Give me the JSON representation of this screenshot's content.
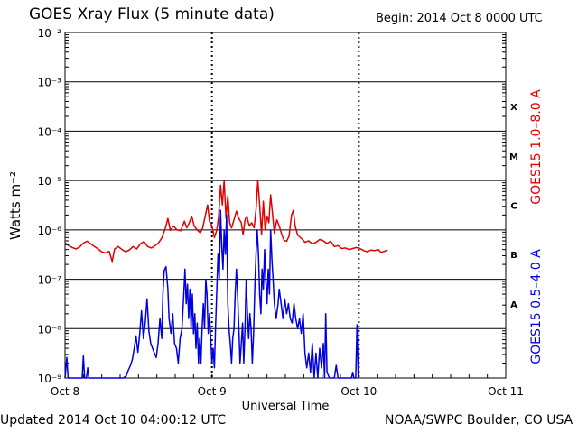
{
  "header": {
    "title": "GOES Xray Flux (5 minute data)",
    "begin": "Begin:  2014 Oct 8 0000 UTC"
  },
  "footer": {
    "updated": "Updated 2014 Oct 10 04:00:12 UTC",
    "credit": "NOAA/SWPC Boulder, CO USA"
  },
  "colors": {
    "long": "#e00000",
    "short": "#0000e0",
    "grid": "#000000"
  },
  "chart_data": {
    "type": "line",
    "title": "GOES Xray Flux (5 minute data)",
    "xlabel": "Universal Time",
    "ylabel": "Watts m⁻²",
    "yscale": "log",
    "ylim": [
      1e-09,
      0.01
    ],
    "xlim": [
      0,
      72
    ],
    "x_unit": "hours since 2014 Oct 8 0000 UTC",
    "x_ticks": [
      {
        "x": 0,
        "label": "Oct 8"
      },
      {
        "x": 24,
        "label": "Oct 9"
      },
      {
        "x": 48,
        "label": "Oct 10"
      },
      {
        "x": 72,
        "label": "Oct 11"
      }
    ],
    "y_ticks": [
      {
        "exp": -9,
        "label": "10⁻⁹"
      },
      {
        "exp": -8,
        "label": "10⁻⁸"
      },
      {
        "exp": -7,
        "label": "10⁻⁷"
      },
      {
        "exp": -6,
        "label": "10⁻⁶"
      },
      {
        "exp": -5,
        "label": "10⁻⁵"
      },
      {
        "exp": -4,
        "label": "10⁻⁴"
      },
      {
        "exp": -3,
        "label": "10⁻³"
      },
      {
        "exp": -2,
        "label": "10⁻²"
      }
    ],
    "flare_classes": [
      {
        "label": "A",
        "exp": -7.5
      },
      {
        "label": "B",
        "exp": -6.5
      },
      {
        "label": "C",
        "exp": -5.5
      },
      {
        "label": "M",
        "exp": -4.5
      },
      {
        "label": "X",
        "exp": -3.5
      }
    ],
    "series": [
      {
        "name": "GOES15 1.0–8.0 A",
        "color": "#e00000",
        "points": [
          [
            0,
            5.5e-07
          ],
          [
            0.6,
            4.8e-07
          ],
          [
            1.2,
            4.4e-07
          ],
          [
            1.8,
            4.1e-07
          ],
          [
            2.4,
            4.5e-07
          ],
          [
            3.0,
            5.4e-07
          ],
          [
            3.6,
            5.9e-07
          ],
          [
            4.2,
            5.2e-07
          ],
          [
            4.8,
            4.6e-07
          ],
          [
            5.4,
            4.1e-07
          ],
          [
            6.0,
            3.6e-07
          ],
          [
            6.6,
            3.4e-07
          ],
          [
            7.2,
            3.7e-07
          ],
          [
            7.7,
            2.3e-07
          ],
          [
            8.1,
            4.1e-07
          ],
          [
            8.7,
            4.6e-07
          ],
          [
            9.3,
            4e-07
          ],
          [
            9.9,
            3.6e-07
          ],
          [
            10.5,
            3.9e-07
          ],
          [
            11.1,
            4.6e-07
          ],
          [
            11.7,
            4.1e-07
          ],
          [
            12.3,
            5.2e-07
          ],
          [
            12.9,
            5.8e-07
          ],
          [
            13.5,
            4.6e-07
          ],
          [
            14.1,
            4.3e-07
          ],
          [
            14.6,
            4.7e-07
          ],
          [
            15.2,
            5.3e-07
          ],
          [
            15.8,
            6.8e-07
          ],
          [
            16.4,
            1.1e-06
          ],
          [
            16.8,
            1.7e-06
          ],
          [
            17.2,
            9.8e-07
          ],
          [
            17.7,
            1.2e-06
          ],
          [
            18.3,
            1e-06
          ],
          [
            18.9,
            9.6e-07
          ],
          [
            19.5,
            1.5e-06
          ],
          [
            19.9,
            1.1e-06
          ],
          [
            20.3,
            1.4e-06
          ],
          [
            20.7,
            1.9e-06
          ],
          [
            21.1,
            1.2e-06
          ],
          [
            21.6,
            1e-06
          ],
          [
            22.1,
            8.7e-07
          ],
          [
            22.5,
            1.1e-06
          ],
          [
            22.9,
            1.9e-06
          ],
          [
            23.3,
            3.2e-06
          ],
          [
            23.6,
            1.5e-06
          ],
          [
            24.0,
            1.2e-06
          ],
          [
            24.4,
            7e-07
          ],
          [
            24.8,
            1e-06
          ],
          [
            25.1,
            1.9e-06
          ],
          [
            25.4,
            8e-06
          ],
          [
            25.7,
            3.2e-06
          ],
          [
            26.0,
            1e-05
          ],
          [
            26.3,
            1.7e-06
          ],
          [
            26.6,
            4.9e-06
          ],
          [
            26.9,
            1.4e-06
          ],
          [
            27.2,
            1.1e-06
          ],
          [
            27.6,
            1.6e-06
          ],
          [
            28.0,
            2.4e-06
          ],
          [
            28.4,
            1.7e-06
          ],
          [
            28.8,
            1.4e-06
          ],
          [
            29.1,
            8e-07
          ],
          [
            29.4,
            1.6e-06
          ],
          [
            29.7,
            1.9e-06
          ],
          [
            30.1,
            1.2e-06
          ],
          [
            30.5,
            1.4e-06
          ],
          [
            30.9,
            1.1e-06
          ],
          [
            31.2,
            2.6e-06
          ],
          [
            31.5,
            1e-05
          ],
          [
            31.8,
            3.3e-06
          ],
          [
            32.1,
            8.1e-07
          ],
          [
            32.4,
            3.8e-06
          ],
          [
            32.7,
            1e-06
          ],
          [
            33.0,
            1.9e-06
          ],
          [
            33.3,
            1.4e-06
          ],
          [
            33.6,
            5.1e-06
          ],
          [
            33.9,
            2.1e-06
          ],
          [
            34.2,
            8.5e-07
          ],
          [
            34.6,
            1.6e-06
          ],
          [
            35.0,
            1.2e-06
          ],
          [
            35.4,
            8.2e-07
          ],
          [
            35.8,
            6.1e-07
          ],
          [
            36.2,
            5.9e-07
          ],
          [
            36.6,
            7.5e-07
          ],
          [
            37.0,
            2e-06
          ],
          [
            37.3,
            2.5e-06
          ],
          [
            37.6,
            1.2e-06
          ],
          [
            38.0,
            7.9e-07
          ],
          [
            38.4,
            7.1e-07
          ],
          [
            38.8,
            6.4e-07
          ],
          [
            39.2,
            5.6e-07
          ],
          [
            39.8,
            6e-07
          ],
          [
            40.4,
            5.2e-07
          ],
          [
            41.0,
            5.6e-07
          ],
          [
            41.6,
            6.4e-07
          ],
          [
            42.2,
            6e-07
          ],
          [
            42.8,
            5.3e-07
          ],
          [
            43.4,
            5.9e-07
          ],
          [
            44.0,
            4.6e-07
          ],
          [
            44.6,
            4.8e-07
          ],
          [
            45.2,
            4.2e-07
          ],
          [
            45.8,
            4.3e-07
          ],
          [
            46.4,
            4e-07
          ],
          [
            47.0,
            4.2e-07
          ],
          [
            47.6,
            4.4e-07
          ],
          [
            48.2,
            4.2e-07
          ],
          [
            48.8,
            3.8e-07
          ],
          [
            49.4,
            3.6e-07
          ],
          [
            50.0,
            3.9e-07
          ],
          [
            50.6,
            3.8e-07
          ],
          [
            51.2,
            4e-07
          ],
          [
            51.6,
            3.5e-07
          ],
          [
            52.2,
            3.7e-07
          ],
          [
            52.7,
            3.9e-07
          ]
        ]
      },
      {
        "name": "GOES15 0.5–4.0 A",
        "color": "#0000e0",
        "points": [
          [
            0,
            1e-09
          ],
          [
            0.3,
            2.6e-09
          ],
          [
            0.5,
            1e-09
          ],
          [
            2.8,
            1e-09
          ],
          [
            3.0,
            2.8e-09
          ],
          [
            3.2,
            1e-09
          ],
          [
            3.5,
            1e-09
          ],
          [
            3.7,
            1.6e-09
          ],
          [
            3.9,
            1e-09
          ],
          [
            8.0,
            1e-09
          ],
          [
            9.5,
            1e-09
          ],
          [
            10.0,
            1.1e-09
          ],
          [
            10.3,
            1.4e-09
          ],
          [
            10.7,
            1.8e-09
          ],
          [
            11.0,
            2.4e-09
          ],
          [
            11.3,
            4e-09
          ],
          [
            11.6,
            7.1e-09
          ],
          [
            11.9,
            3.3e-09
          ],
          [
            12.2,
            7.9e-09
          ],
          [
            12.5,
            2.3e-08
          ],
          [
            12.8,
            6.3e-09
          ],
          [
            13.1,
            1.3e-08
          ],
          [
            13.4,
            4e-08
          ],
          [
            13.7,
            8.9e-09
          ],
          [
            14.0,
            5e-09
          ],
          [
            14.3,
            4e-09
          ],
          [
            14.6,
            3.2e-09
          ],
          [
            14.9,
            2.6e-09
          ],
          [
            15.2,
            5e-09
          ],
          [
            15.5,
            1.6e-08
          ],
          [
            15.8,
            6.3e-09
          ],
          [
            16.0,
            5e-08
          ],
          [
            16.2,
            1.5e-07
          ],
          [
            16.5,
            1.8e-07
          ],
          [
            16.8,
            6.3e-08
          ],
          [
            17.0,
            1.6e-08
          ],
          [
            17.3,
            8e-09
          ],
          [
            17.6,
            2e-08
          ],
          [
            17.9,
            5e-09
          ],
          [
            18.2,
            4e-09
          ],
          [
            18.5,
            2e-09
          ],
          [
            18.8,
            6.3e-09
          ],
          [
            19.1,
            1e-08
          ],
          [
            19.4,
            5e-08
          ],
          [
            19.6,
            1.6e-07
          ],
          [
            19.8,
            3.2e-08
          ],
          [
            20.0,
            7.9e-08
          ],
          [
            20.2,
            1.6e-08
          ],
          [
            20.4,
            6.3e-08
          ],
          [
            20.6,
            1e-08
          ],
          [
            20.8,
            5e-08
          ],
          [
            21.0,
            7.9e-09
          ],
          [
            21.2,
            2e-08
          ],
          [
            21.4,
            4e-09
          ],
          [
            21.6,
            1.3e-08
          ],
          [
            21.8,
            2e-09
          ],
          [
            22.0,
            6.3e-09
          ],
          [
            22.2,
            2e-09
          ],
          [
            22.4,
            1e-08
          ],
          [
            22.6,
            3.2e-08
          ],
          [
            22.8,
            1e-08
          ],
          [
            23.0,
            1e-07
          ],
          [
            23.2,
            5e-08
          ],
          [
            23.4,
            8e-09
          ],
          [
            23.6,
            2e-08
          ],
          [
            23.8,
            6.3e-09
          ],
          [
            24.0,
            2e-09
          ],
          [
            24.2,
            4e-09
          ],
          [
            24.4,
            1.6e-09
          ],
          [
            24.6,
            1.1e-08
          ],
          [
            24.8,
            6.3e-08
          ],
          [
            25.0,
            3.2e-07
          ],
          [
            25.2,
            1e-07
          ],
          [
            25.4,
            2.5e-06
          ],
          [
            25.6,
            5e-07
          ],
          [
            25.8,
            1.6e-07
          ],
          [
            26.0,
            1e-06
          ],
          [
            26.2,
            3.2e-07
          ],
          [
            26.4,
            2e-06
          ],
          [
            26.6,
            3.2e-08
          ],
          [
            26.8,
            1e-08
          ],
          [
            27.0,
            5e-09
          ],
          [
            27.2,
            2e-09
          ],
          [
            27.4,
            6.3e-09
          ],
          [
            27.6,
            1e-08
          ],
          [
            27.8,
            5e-08
          ],
          [
            28.0,
            1.6e-07
          ],
          [
            28.2,
            5e-08
          ],
          [
            28.4,
            1e-08
          ],
          [
            28.6,
            2e-09
          ],
          [
            28.8,
            5e-09
          ],
          [
            29.0,
            1.3e-08
          ],
          [
            29.2,
            2e-09
          ],
          [
            29.4,
            1e-08
          ],
          [
            29.6,
            1e-07
          ],
          [
            29.8,
            2e-08
          ],
          [
            30.0,
            6.3e-09
          ],
          [
            30.2,
            2e-08
          ],
          [
            30.4,
            1e-08
          ],
          [
            30.6,
            2e-09
          ],
          [
            30.8,
            8e-09
          ],
          [
            31.0,
            6.3e-08
          ],
          [
            31.2,
            3.2e-07
          ],
          [
            31.4,
            1e-06
          ],
          [
            31.6,
            3.2e-07
          ],
          [
            31.8,
            5e-08
          ],
          [
            32.0,
            2e-08
          ],
          [
            32.2,
            1.6e-07
          ],
          [
            32.4,
            6.3e-08
          ],
          [
            32.6,
            4e-07
          ],
          [
            32.8,
            1e-07
          ],
          [
            33.0,
            3.2e-08
          ],
          [
            33.2,
            1.6e-07
          ],
          [
            33.4,
            5e-08
          ],
          [
            33.6,
            1e-06
          ],
          [
            33.8,
            2.5e-07
          ],
          [
            34.0,
            1e-07
          ],
          [
            34.2,
            3.2e-08
          ],
          [
            34.5,
            1.6e-08
          ],
          [
            34.8,
            3.2e-08
          ],
          [
            35.0,
            6.3e-08
          ],
          [
            35.3,
            3.2e-08
          ],
          [
            35.6,
            1.6e-08
          ],
          [
            35.9,
            4e-08
          ],
          [
            36.2,
            2e-08
          ],
          [
            36.5,
            3.2e-08
          ],
          [
            36.8,
            1.6e-08
          ],
          [
            37.1,
            1.3e-08
          ],
          [
            37.4,
            3.2e-08
          ],
          [
            37.7,
            1.6e-08
          ],
          [
            38.0,
            1e-08
          ],
          [
            38.3,
            1.6e-08
          ],
          [
            38.6,
            8e-09
          ],
          [
            38.9,
            2e-08
          ],
          [
            39.2,
            3.2e-09
          ],
          [
            39.5,
            1.6e-09
          ],
          [
            39.8,
            3.2e-09
          ],
          [
            40.1,
            1.3e-09
          ],
          [
            40.4,
            5e-09
          ],
          [
            40.7,
            1e-09
          ],
          [
            41.0,
            3.2e-09
          ],
          [
            41.3,
            1e-09
          ],
          [
            41.6,
            4e-09
          ],
          [
            41.9,
            1.6e-09
          ],
          [
            42.2,
            5e-09
          ],
          [
            42.4,
            1e-09
          ],
          [
            42.6,
            2e-08
          ],
          [
            42.8,
            1.3e-09
          ],
          [
            43.2,
            1e-09
          ],
          [
            44.0,
            1e-09
          ],
          [
            44.3,
            1.8e-09
          ],
          [
            44.6,
            1e-09
          ],
          [
            46.8,
            1e-09
          ],
          [
            47.0,
            1.3e-09
          ],
          [
            47.2,
            1e-09
          ],
          [
            47.5,
            1e-09
          ],
          [
            47.7,
            1.2e-08
          ],
          [
            47.9,
            1e-09
          ]
        ]
      }
    ]
  }
}
